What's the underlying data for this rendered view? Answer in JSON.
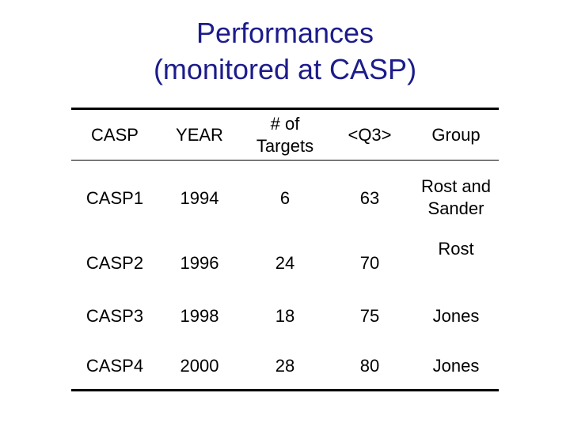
{
  "title": [
    "Performances",
    "(monitored at CASP)"
  ],
  "table": {
    "header": [
      "CASP",
      "YEAR",
      "# of Targets",
      "<Q3>",
      "Group"
    ],
    "rows": [
      [
        "CASP1",
        1994,
        6,
        63,
        "Rost and Sander"
      ],
      [
        "CASP2",
        1996,
        24,
        70,
        "Rost"
      ],
      [
        "CASP3",
        1998,
        18,
        75,
        "Jones"
      ],
      [
        "CASP4",
        2000,
        28,
        80,
        "Jones"
      ]
    ]
  }
}
